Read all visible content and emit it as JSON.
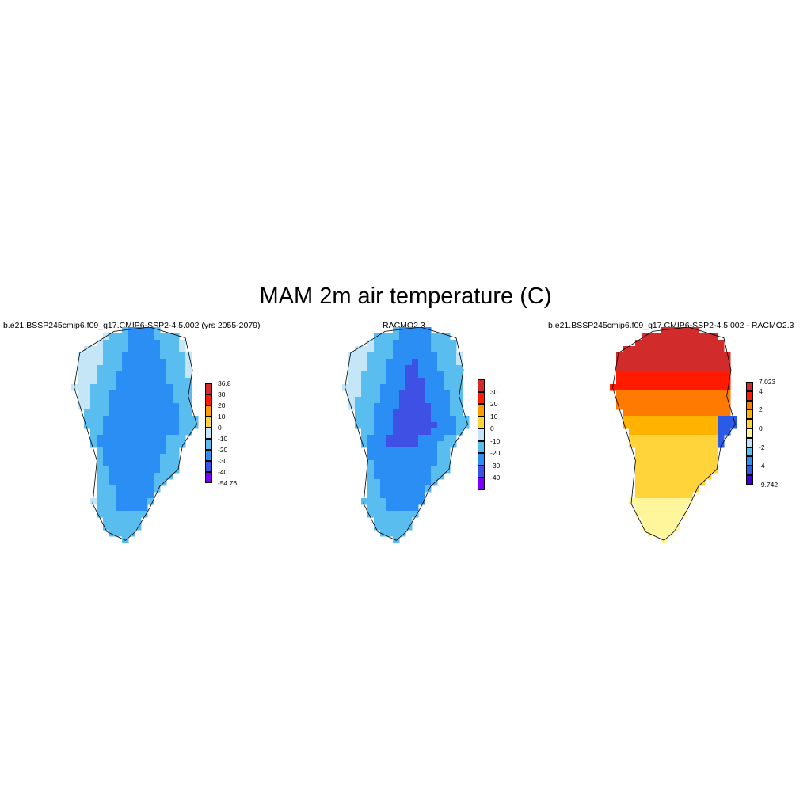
{
  "title": "MAM 2m air temperature (C)",
  "panels": [
    {
      "id": "model",
      "title": "b.e21.BSSP245cmip6.f09_g17.CMIP6-SSP2-4.5.002 (yrs 2055-2079)",
      "colorbar": {
        "colors": [
          "#7b00ff",
          "#3f51e5",
          "#2b8ef5",
          "#59bdf0",
          "#c5e6f7",
          "#ffd43b",
          "#ff9c00",
          "#ff1a00",
          "#d12b2b"
        ],
        "labels": [
          "-54.76",
          "-40",
          "-30",
          "-20",
          "-10",
          "0",
          "10",
          "20",
          "30",
          "36.8"
        ]
      },
      "palette": [
        "#c5e6f7",
        "#59bdf0",
        "#2b8ef5",
        "#3f51e5",
        "#ffd43b",
        "#ff9c00",
        "#ff1a00",
        "#d12b2b"
      ]
    },
    {
      "id": "obs",
      "title": "RACMO2.3",
      "colorbar": {
        "colors": [
          "#7b00ff",
          "#3f51e5",
          "#2b8ef5",
          "#59bdf0",
          "#c5e6f7",
          "#ffd43b",
          "#ff9c00",
          "#ff1a00",
          "#d12b2b"
        ],
        "labels": [
          "-40",
          "-30",
          "-20",
          "-10",
          "0",
          "10",
          "20",
          "30"
        ]
      }
    },
    {
      "id": "diff",
      "title": "b.e21.BSSP245cmip6.f09_g17.CMIP6-SSP2-4.5.002 - RACMO2.3",
      "colorbar": {
        "colors": [
          "#3a00e0",
          "#2b5be6",
          "#2b8ef5",
          "#59bdf0",
          "#bfe3f5",
          "#fff59a",
          "#ffd43b",
          "#ffb300",
          "#ff7a00",
          "#ff1a00",
          "#d12b2b"
        ],
        "labels": [
          "-9.742",
          "-4",
          "-2",
          "0",
          "2",
          "4",
          "7.023"
        ]
      }
    }
  ]
}
